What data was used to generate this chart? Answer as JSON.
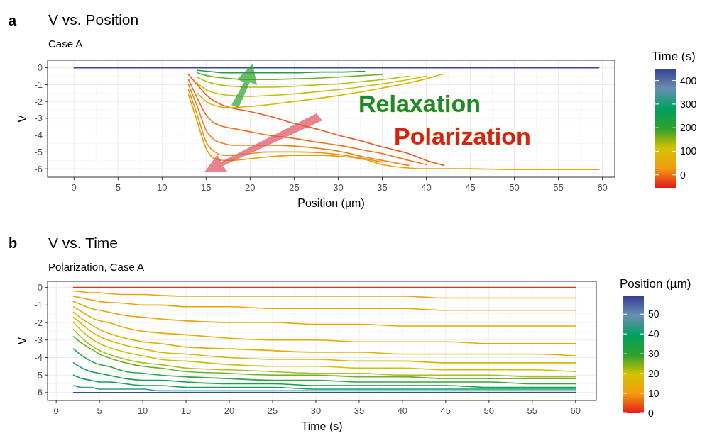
{
  "chart_data": [
    {
      "type": "line",
      "title": "V vs. Position",
      "subtitle": "Case A",
      "xlabel": "Position (µm)",
      "ylabel": "V",
      "clabel": "Time (s)",
      "clim": [
        -55,
        450
      ],
      "cticks": [
        0,
        100,
        200,
        300,
        400
      ],
      "annotations": [
        "a",
        "Relaxation",
        "Polarization"
      ],
      "grid": true,
      "xlim": [
        -3,
        61.4
      ],
      "xticks": [
        0,
        5,
        10,
        15,
        20,
        25,
        30,
        35,
        40,
        45,
        50,
        55,
        60
      ],
      "ylim": [
        -6.5,
        0.45
      ],
      "yticks": [
        -6,
        -5,
        -4,
        -3,
        -2,
        -1,
        0
      ],
      "series": [
        {
          "color": "#3a4a9a",
          "x": [
            0,
            5,
            10,
            12,
            20,
            30,
            40,
            50,
            55,
            59.6
          ],
          "values": [
            0,
            0,
            0,
            0,
            0,
            0,
            0,
            0,
            0,
            0
          ]
        },
        {
          "color": "#f05a20",
          "x": [
            13,
            14,
            15,
            16,
            17,
            18,
            20,
            22,
            25,
            28,
            30,
            33,
            35,
            38,
            40,
            42
          ],
          "values": [
            -0.4,
            -1.0,
            -1.6,
            -2.0,
            -2.25,
            -2.4,
            -2.6,
            -2.85,
            -3.3,
            -3.7,
            -4.0,
            -4.4,
            -4.7,
            -5.1,
            -5.5,
            -5.8
          ]
        },
        {
          "color": "#f07020",
          "x": [
            13,
            14,
            15,
            16,
            17,
            18,
            20,
            22,
            25,
            28,
            30,
            33,
            35,
            38,
            40
          ],
          "values": [
            -0.7,
            -1.8,
            -2.8,
            -3.3,
            -3.5,
            -3.6,
            -3.8,
            -4.0,
            -4.2,
            -4.45,
            -4.6,
            -4.9,
            -5.1,
            -5.5,
            -5.75
          ]
        },
        {
          "color": "#f08018",
          "x": [
            13,
            14,
            15,
            16,
            17,
            18,
            20,
            22,
            25,
            28,
            30,
            33,
            35,
            38
          ],
          "values": [
            -1.0,
            -2.3,
            -3.7,
            -4.3,
            -4.5,
            -4.6,
            -4.6,
            -4.6,
            -4.65,
            -4.8,
            -4.95,
            -5.3,
            -5.5,
            -5.8
          ]
        },
        {
          "color": "#f09010",
          "x": [
            13,
            14,
            15,
            16,
            17,
            18,
            20,
            22,
            25,
            28,
            30,
            33,
            35
          ],
          "values": [
            -1.3,
            -2.8,
            -4.4,
            -5.0,
            -5.2,
            -5.2,
            -5.1,
            -5.0,
            -5.0,
            -5.05,
            -5.15,
            -5.4,
            -5.6
          ]
        },
        {
          "color": "#e8a000",
          "x": [
            13,
            14,
            15,
            16,
            17,
            18,
            20,
            22,
            25,
            28,
            30,
            33,
            35,
            38,
            40,
            42,
            45,
            50,
            55,
            59.6
          ],
          "values": [
            -1.6,
            -3.2,
            -4.8,
            -5.4,
            -5.5,
            -5.5,
            -5.4,
            -5.3,
            -5.2,
            -5.2,
            -5.25,
            -5.45,
            -5.75,
            -5.95,
            -6.0,
            -6.0,
            -6.0,
            -6.05,
            -6.05,
            -6.05
          ]
        },
        {
          "color": "#d8b800",
          "x": [
            14,
            15,
            16,
            17,
            18,
            20,
            22,
            25,
            28,
            30,
            33,
            35,
            38,
            40,
            42
          ],
          "values": [
            -1.5,
            -2.0,
            -2.25,
            -2.35,
            -2.35,
            -2.3,
            -2.2,
            -2.0,
            -1.8,
            -1.65,
            -1.4,
            -1.2,
            -0.9,
            -0.65,
            -0.35
          ]
        },
        {
          "color": "#c8c000",
          "x": [
            14,
            15,
            16,
            17,
            18,
            20,
            22,
            25,
            28,
            30,
            33,
            35,
            38,
            40
          ],
          "values": [
            -0.9,
            -1.3,
            -1.5,
            -1.6,
            -1.65,
            -1.7,
            -1.65,
            -1.55,
            -1.4,
            -1.3,
            -1.1,
            -0.95,
            -0.7,
            -0.5
          ]
        },
        {
          "color": "#b0c010",
          "x": [
            14,
            15,
            16,
            17,
            18,
            20,
            22,
            25,
            28,
            30,
            33,
            35,
            38
          ],
          "values": [
            -0.55,
            -0.8,
            -0.95,
            -1.05,
            -1.1,
            -1.15,
            -1.15,
            -1.1,
            -1.0,
            -0.95,
            -0.8,
            -0.7,
            -0.5
          ]
        },
        {
          "color": "#70b030",
          "x": [
            14,
            15,
            16,
            17,
            18,
            20,
            22,
            25,
            28,
            30,
            33,
            35
          ],
          "values": [
            -0.3,
            -0.45,
            -0.55,
            -0.6,
            -0.65,
            -0.7,
            -0.7,
            -0.65,
            -0.6,
            -0.55,
            -0.45,
            -0.4
          ]
        },
        {
          "color": "#20a040",
          "x": [
            14,
            15,
            16,
            17,
            18,
            20,
            22,
            25,
            28,
            30,
            33
          ],
          "values": [
            -0.15,
            -0.2,
            -0.25,
            -0.3,
            -0.3,
            -0.3,
            -0.3,
            -0.3,
            -0.25,
            -0.25,
            -0.2
          ]
        }
      ]
    },
    {
      "type": "line",
      "title": "V vs. Time",
      "subtitle": "Polarization, Case A",
      "xlabel": "Time (s)",
      "ylabel": "V",
      "clabel": "Position (µm)",
      "clim": [
        0,
        59
      ],
      "cticks": [
        0,
        10,
        20,
        30,
        40,
        50
      ],
      "annotations": [
        "b"
      ],
      "grid": true,
      "xlim": [
        -1,
        62.4
      ],
      "xticks": [
        0,
        5,
        10,
        15,
        20,
        25,
        30,
        35,
        40,
        45,
        50,
        55,
        60
      ],
      "ylim": [
        -6.45,
        0.35
      ],
      "yticks": [
        -6,
        -5,
        -4,
        -3,
        -2,
        -1,
        0
      ],
      "x": [
        2,
        3,
        4,
        5,
        6,
        8,
        10,
        12,
        15,
        20,
        25,
        30,
        35,
        40,
        45,
        50,
        55,
        60
      ],
      "series": [
        {
          "color": "#e83020",
          "values": [
            0,
            0,
            0,
            0,
            0,
            0,
            0,
            0,
            0,
            0,
            0,
            0,
            0,
            0,
            0,
            0,
            0,
            0
          ]
        },
        {
          "color": "#f0a010",
          "values": [
            -0.2,
            -0.25,
            -0.3,
            -0.3,
            -0.35,
            -0.4,
            -0.4,
            -0.45,
            -0.5,
            -0.5,
            -0.5,
            -0.5,
            -0.5,
            -0.5,
            -0.6,
            -0.6,
            -0.6,
            -0.6
          ]
        },
        {
          "color": "#eca400",
          "values": [
            -0.5,
            -0.6,
            -0.7,
            -0.8,
            -0.85,
            -0.9,
            -1.0,
            -1.0,
            -1.1,
            -1.1,
            -1.2,
            -1.2,
            -1.2,
            -1.2,
            -1.3,
            -1.3,
            -1.3,
            -1.3
          ]
        },
        {
          "color": "#e8a800",
          "values": [
            -0.8,
            -1.0,
            -1.2,
            -1.3,
            -1.4,
            -1.6,
            -1.7,
            -1.8,
            -1.9,
            -2.0,
            -2.0,
            -2.1,
            -2.1,
            -2.2,
            -2.2,
            -2.2,
            -2.2,
            -2.2
          ]
        },
        {
          "color": "#e4ac00",
          "values": [
            -1.1,
            -1.4,
            -1.7,
            -1.9,
            -2.0,
            -2.3,
            -2.5,
            -2.6,
            -2.7,
            -2.9,
            -3.0,
            -3.0,
            -3.1,
            -3.1,
            -3.1,
            -3.2,
            -3.2,
            -3.2
          ]
        },
        {
          "color": "#e0b000",
          "values": [
            -1.4,
            -1.8,
            -2.1,
            -2.4,
            -2.6,
            -2.9,
            -3.1,
            -3.2,
            -3.4,
            -3.5,
            -3.6,
            -3.7,
            -3.7,
            -3.8,
            -3.8,
            -3.8,
            -3.8,
            -3.9
          ]
        },
        {
          "color": "#d8b800",
          "values": [
            -1.7,
            -2.1,
            -2.5,
            -2.8,
            -3.0,
            -3.3,
            -3.5,
            -3.7,
            -3.8,
            -4.0,
            -4.1,
            -4.1,
            -4.2,
            -4.2,
            -4.3,
            -4.3,
            -4.3,
            -4.3
          ]
        },
        {
          "color": "#d0c000",
          "values": [
            -2.0,
            -2.5,
            -2.9,
            -3.2,
            -3.4,
            -3.7,
            -3.9,
            -4.1,
            -4.2,
            -4.4,
            -4.5,
            -4.5,
            -4.6,
            -4.6,
            -4.7,
            -4.7,
            -4.7,
            -4.8
          ]
        },
        {
          "color": "#a8c020",
          "values": [
            -2.4,
            -2.9,
            -3.3,
            -3.6,
            -3.8,
            -4.1,
            -4.3,
            -4.4,
            -4.6,
            -4.7,
            -4.8,
            -4.9,
            -4.9,
            -5.0,
            -5.0,
            -5.0,
            -5.1,
            -5.1
          ]
        },
        {
          "color": "#70b030",
          "values": [
            -2.8,
            -3.2,
            -3.5,
            -3.8,
            -4.0,
            -4.3,
            -4.5,
            -4.6,
            -4.8,
            -4.9,
            -5.0,
            -5.0,
            -5.1,
            -5.1,
            -5.2,
            -5.2,
            -5.2,
            -5.2
          ]
        },
        {
          "color": "#30a840",
          "values": [
            -3.5,
            -3.9,
            -4.2,
            -4.4,
            -4.5,
            -4.8,
            -4.9,
            -5.0,
            -5.1,
            -5.2,
            -5.3,
            -5.3,
            -5.4,
            -5.4,
            -5.4,
            -5.4,
            -5.5,
            -5.5
          ]
        },
        {
          "color": "#10a050",
          "values": [
            -4.3,
            -4.6,
            -4.8,
            -4.9,
            -5.0,
            -5.2,
            -5.3,
            -5.3,
            -5.4,
            -5.5,
            -5.5,
            -5.6,
            -5.6,
            -5.6,
            -5.6,
            -5.7,
            -5.7,
            -5.7
          ]
        },
        {
          "color": "#10a060",
          "values": [
            -5.0,
            -5.2,
            -5.3,
            -5.4,
            -5.4,
            -5.5,
            -5.6,
            -5.6,
            -5.7,
            -5.7,
            -5.7,
            -5.8,
            -5.8,
            -5.8,
            -5.8,
            -5.8,
            -5.8,
            -5.8
          ]
        },
        {
          "color": "#30a080",
          "values": [
            -5.6,
            -5.7,
            -5.7,
            -5.8,
            -5.8,
            -5.8,
            -5.8,
            -5.9,
            -5.9,
            -5.9,
            -5.9,
            -5.9,
            -5.9,
            -5.9,
            -5.9,
            -5.9,
            -5.9,
            -5.9
          ]
        },
        {
          "color": "#3a4a9a",
          "values": [
            -6,
            -6,
            -6,
            -6,
            -6,
            -6,
            -6,
            -6,
            -6,
            -6,
            -6,
            -6,
            -6,
            -6,
            -6,
            -6,
            -6,
            -6
          ]
        }
      ]
    }
  ]
}
